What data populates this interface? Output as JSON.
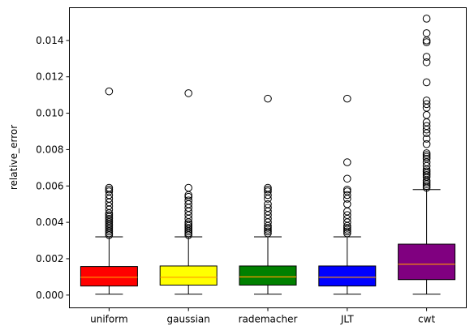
{
  "chart_data": {
    "type": "box",
    "title": "",
    "xlabel": "",
    "ylabel": "relative_error",
    "ylim": [
      -0.0007,
      0.0158
    ],
    "yticks": [
      0.0,
      0.002,
      0.004,
      0.006,
      0.008,
      0.01,
      0.012,
      0.014
    ],
    "ytick_labels": [
      "0.000",
      "0.002",
      "0.004",
      "0.006",
      "0.008",
      "0.010",
      "0.012",
      "0.014"
    ],
    "grid": false,
    "median_color": "#ff9900",
    "categories": [
      "uniform",
      "gaussian",
      "rademacher",
      "JLT",
      "cwt"
    ],
    "boxes": [
      {
        "label": "uniform",
        "color": "#ff0000",
        "whisker_low": 5e-05,
        "q1": 0.0005,
        "median": 0.00098,
        "q3": 0.00157,
        "whisker_high": 0.0032,
        "outliers": [
          0.0033,
          0.0034,
          0.0035,
          0.0036,
          0.0037,
          0.0038,
          0.0039,
          0.004,
          0.0041,
          0.0042,
          0.0043,
          0.0044,
          0.0045,
          0.0047,
          0.0049,
          0.0051,
          0.0053,
          0.0055,
          0.0057,
          0.0058,
          0.0059,
          0.0112
        ]
      },
      {
        "label": "gaussian",
        "color": "#ffff00",
        "whisker_low": 5e-05,
        "q1": 0.00055,
        "median": 0.00098,
        "q3": 0.0016,
        "whisker_high": 0.0032,
        "outliers": [
          0.0033,
          0.0034,
          0.0035,
          0.0036,
          0.0037,
          0.0038,
          0.0039,
          0.004,
          0.0042,
          0.0044,
          0.0046,
          0.0048,
          0.005,
          0.0052,
          0.0054,
          0.0055,
          0.0059,
          0.0111
        ]
      },
      {
        "label": "rademacher",
        "color": "#008000",
        "whisker_low": 5e-05,
        "q1": 0.00055,
        "median": 0.001,
        "q3": 0.0016,
        "whisker_high": 0.0032,
        "outliers": [
          0.0034,
          0.0035,
          0.0036,
          0.0037,
          0.0038,
          0.004,
          0.0042,
          0.0044,
          0.0046,
          0.0048,
          0.005,
          0.0053,
          0.0055,
          0.0057,
          0.0058,
          0.0059,
          0.0108
        ]
      },
      {
        "label": "JLT",
        "color": "#0000ff",
        "whisker_low": 5e-05,
        "q1": 0.0005,
        "median": 0.00098,
        "q3": 0.0016,
        "whisker_high": 0.0032,
        "outliers": [
          0.0034,
          0.0035,
          0.0036,
          0.0037,
          0.0038,
          0.004,
          0.0042,
          0.0044,
          0.0046,
          0.005,
          0.0053,
          0.0055,
          0.0057,
          0.0058,
          0.0064,
          0.0073,
          0.0108
        ]
      },
      {
        "label": "cwt",
        "color": "#800080",
        "whisker_low": 5e-05,
        "q1": 0.00085,
        "median": 0.0017,
        "q3": 0.0028,
        "whisker_high": 0.0058,
        "outliers": [
          0.0059,
          0.006,
          0.0061,
          0.0062,
          0.0063,
          0.0065,
          0.0066,
          0.0067,
          0.0068,
          0.0069,
          0.0071,
          0.0073,
          0.0075,
          0.0076,
          0.0077,
          0.0078,
          0.0083,
          0.0086,
          0.0089,
          0.0091,
          0.0093,
          0.0095,
          0.0099,
          0.0103,
          0.0105,
          0.0107,
          0.0117,
          0.0128,
          0.0131,
          0.0139,
          0.014,
          0.0144,
          0.0152
        ]
      }
    ]
  }
}
